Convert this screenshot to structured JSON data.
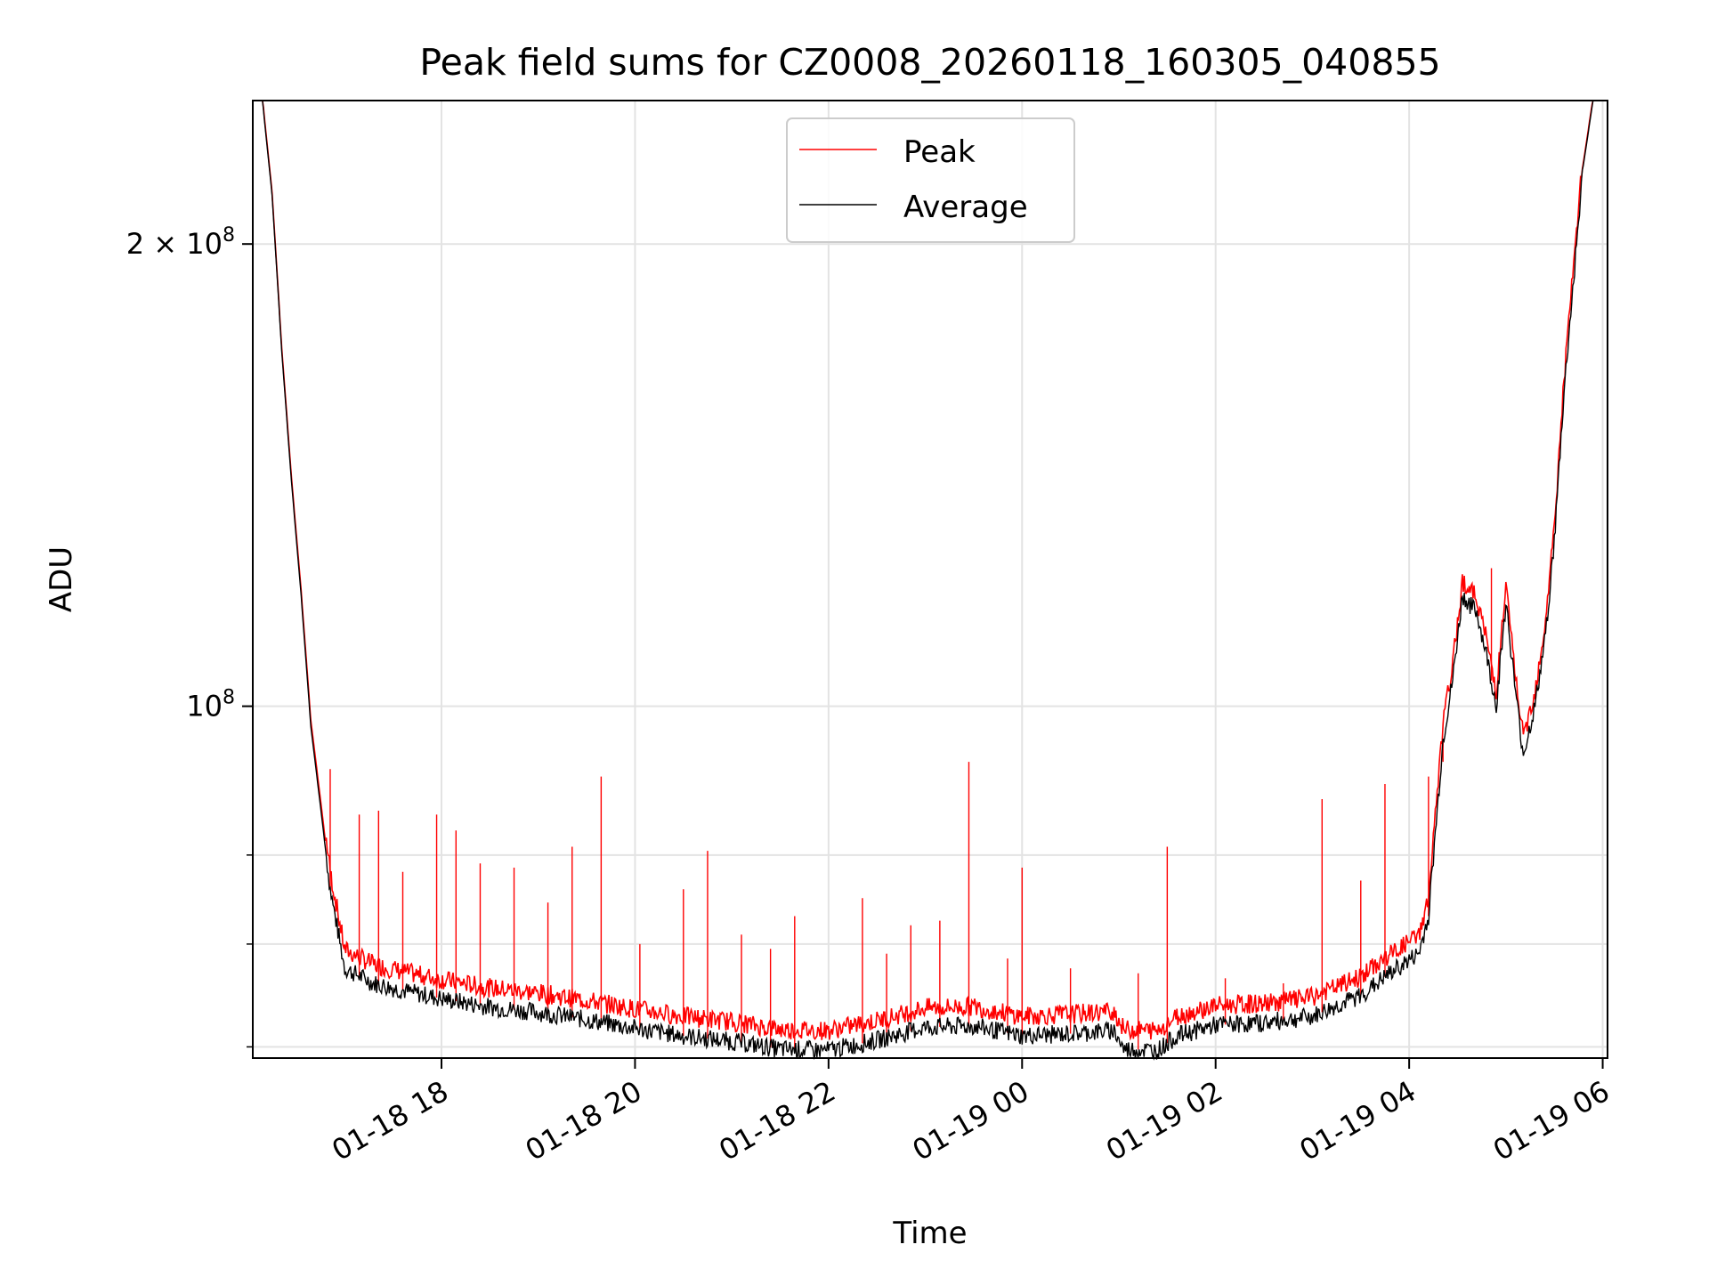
{
  "chart_data": {
    "type": "line",
    "title": "Peak field sums for CZ0008_20260118_160305_040855",
    "xlabel": "Time",
    "ylabel": "ADU",
    "yscale": "log",
    "ylim": [
      59000000,
      248000000
    ],
    "xlim_hours": [
      16.05,
      30.05
    ],
    "x_ticks": [
      {
        "label": "01-18 18",
        "hour": 18
      },
      {
        "label": "01-18 20",
        "hour": 20
      },
      {
        "label": "01-18 22",
        "hour": 22
      },
      {
        "label": "01-19 00",
        "hour": 24
      },
      {
        "label": "01-19 02",
        "hour": 26
      },
      {
        "label": "01-19 04",
        "hour": 28
      },
      {
        "label": "01-19 06",
        "hour": 30
      }
    ],
    "y_major_ticks": [
      {
        "label_base": "2 × 10",
        "label_exp": "8",
        "value": 200000000
      },
      {
        "label_base": "10",
        "label_exp": "8",
        "value": 100000000
      }
    ],
    "y_minor_ticks": [
      60000000,
      70000000,
      80000000
    ],
    "grid": true,
    "legend": {
      "position": "top-center",
      "entries": [
        "Peak",
        "Average"
      ]
    },
    "series": [
      {
        "name": "Average",
        "color": "#000000",
        "points": [
          [
            16.05,
            248000000
          ],
          [
            16.15,
            248000000
          ],
          [
            16.25,
            215000000
          ],
          [
            16.35,
            170000000
          ],
          [
            16.45,
            140000000
          ],
          [
            16.55,
            118000000
          ],
          [
            16.65,
            97000000
          ],
          [
            16.75,
            86000000
          ],
          [
            16.85,
            76000000
          ],
          [
            17.0,
            67500000
          ],
          [
            17.3,
            66000000
          ],
          [
            17.6,
            65300000
          ],
          [
            18.0,
            64500000
          ],
          [
            18.5,
            63700000
          ],
          [
            19.0,
            63200000
          ],
          [
            19.5,
            62500000
          ],
          [
            20.0,
            61700000
          ],
          [
            20.5,
            61000000
          ],
          [
            21.0,
            60500000
          ],
          [
            21.5,
            59800000
          ],
          [
            22.0,
            59700000
          ],
          [
            22.5,
            60600000
          ],
          [
            23.0,
            61800000
          ],
          [
            23.5,
            61900000
          ],
          [
            24.0,
            61000000
          ],
          [
            24.5,
            61200000
          ],
          [
            24.95,
            61500000
          ],
          [
            25.05,
            59800000
          ],
          [
            25.4,
            59700000
          ],
          [
            25.6,
            61000000
          ],
          [
            26.0,
            62000000
          ],
          [
            26.5,
            62200000
          ],
          [
            27.0,
            62800000
          ],
          [
            27.5,
            64800000
          ],
          [
            27.8,
            67000000
          ],
          [
            28.1,
            69000000
          ],
          [
            28.2,
            73000000
          ],
          [
            28.35,
            95000000
          ],
          [
            28.45,
            104000000
          ],
          [
            28.55,
            118000000
          ],
          [
            28.7,
            115000000
          ],
          [
            28.8,
            108000000
          ],
          [
            28.9,
            100000000
          ],
          [
            29.0,
            117000000
          ],
          [
            29.1,
            102000000
          ],
          [
            29.18,
            93000000
          ],
          [
            29.3,
            100000000
          ],
          [
            29.4,
            110000000
          ],
          [
            29.5,
            128000000
          ],
          [
            29.6,
            160000000
          ],
          [
            29.7,
            190000000
          ],
          [
            29.8,
            225000000
          ],
          [
            29.9,
            248000000
          ],
          [
            30.05,
            248000000
          ]
        ]
      },
      {
        "name": "Peak",
        "color": "#ff0000",
        "base_offset": 900000,
        "spikes": [
          [
            16.85,
            91000000
          ],
          [
            17.15,
            85000000
          ],
          [
            17.35,
            85500000
          ],
          [
            17.6,
            78000000
          ],
          [
            17.95,
            85000000
          ],
          [
            18.15,
            83000000
          ],
          [
            18.4,
            79000000
          ],
          [
            18.75,
            78500000
          ],
          [
            19.1,
            74500000
          ],
          [
            19.35,
            81000000
          ],
          [
            19.65,
            90000000
          ],
          [
            20.05,
            70000000
          ],
          [
            20.5,
            76000000
          ],
          [
            20.75,
            80500000
          ],
          [
            21.1,
            71000000
          ],
          [
            21.4,
            69500000
          ],
          [
            21.65,
            73000000
          ],
          [
            22.35,
            75000000
          ],
          [
            22.6,
            69000000
          ],
          [
            22.85,
            72000000
          ],
          [
            23.15,
            72500000
          ],
          [
            23.45,
            92000000
          ],
          [
            23.85,
            68500000
          ],
          [
            24.0,
            78500000
          ],
          [
            24.5,
            67500000
          ],
          [
            25.2,
            67000000
          ],
          [
            25.5,
            81000000
          ],
          [
            26.1,
            66500000
          ],
          [
            26.7,
            66000000
          ],
          [
            27.1,
            87000000
          ],
          [
            27.5,
            77000000
          ],
          [
            27.75,
            89000000
          ],
          [
            28.2,
            90000000
          ],
          [
            28.35,
            92000000
          ],
          [
            28.85,
            123000000
          ]
        ]
      }
    ]
  }
}
